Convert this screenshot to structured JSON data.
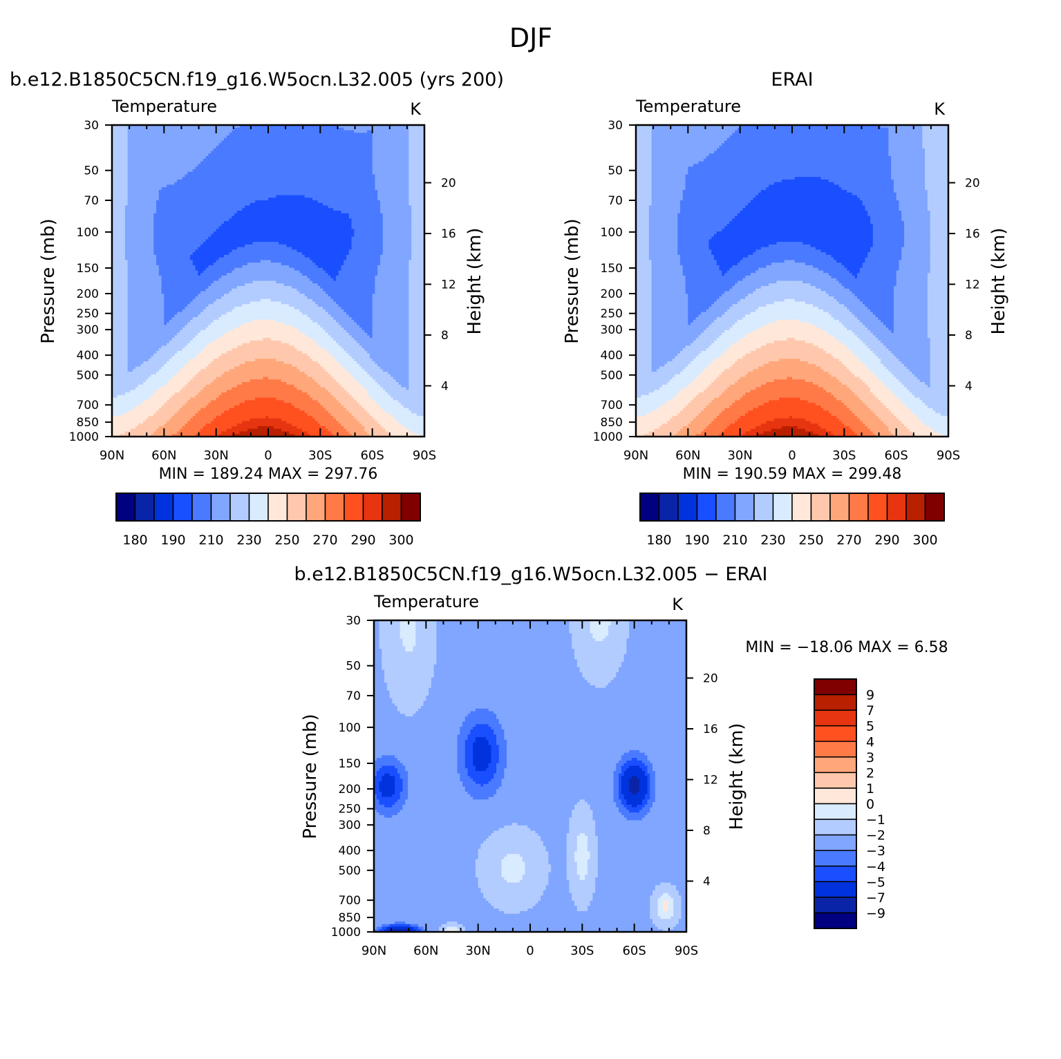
{
  "figure": {
    "title": "DJF"
  },
  "colors": {
    "abs_palette": [
      "#000080",
      "#0a24a8",
      "#0033dd",
      "#1a4fff",
      "#4a7aff",
      "#80a6ff",
      "#b3ccff",
      "#d9ebff",
      "#ffe8d9",
      "#ffc8ad",
      "#ffa77a",
      "#ff7a47",
      "#ff5020",
      "#e63510",
      "#b82000",
      "#800000"
    ],
    "diff_palette": [
      "#000080",
      "#0a24a8",
      "#0033dd",
      "#1a4fff",
      "#4a7aff",
      "#80a6ff",
      "#b3ccff",
      "#d9ebff",
      "#ffe8d9",
      "#ffc8ad",
      "#ffa77a",
      "#ff7a47",
      "#ff5020",
      "#e63510",
      "#b82000",
      "#800000"
    ]
  },
  "chart_data": [
    {
      "type": "heatmap",
      "title": "b.e12.B1850C5CN.f19_g16.W5ocn.L32.005 (yrs 200)",
      "left_label": "Temperature",
      "right_label": "K",
      "ylabel": "Pressure (mb)",
      "ylabel_right": "Height (km)",
      "xticks": [
        "90N",
        "60N",
        "30N",
        "0",
        "30S",
        "60S",
        "90S"
      ],
      "yticks": [
        "30",
        "50",
        "70",
        "100",
        "150",
        "200",
        "250",
        "300",
        "400",
        "500",
        "700",
        "850",
        "1000"
      ],
      "yticks_right": [
        "4",
        "8",
        "12",
        "16",
        "20"
      ],
      "x_range": [
        -90,
        90
      ],
      "y_range_mb": [
        30,
        1000
      ],
      "stats": "MIN =  189.24   MAX =  297.76",
      "stat_min": 189.24,
      "stat_max": 297.76,
      "colorbar_labels": [
        "180",
        "190",
        "210",
        "230",
        "250",
        "270",
        "290",
        "300"
      ],
      "field": {
        "kind": "abs",
        "tropo_shift": 0,
        "tropo_mag": 1.0,
        "polar_strat": 0,
        "seed": 1
      }
    },
    {
      "type": "heatmap",
      "title": "ERAI",
      "left_label": "Temperature",
      "right_label": "K",
      "ylabel": "Pressure (mb)",
      "ylabel_right": "Height (km)",
      "xticks": [
        "90N",
        "60N",
        "30N",
        "0",
        "30S",
        "60S",
        "90S"
      ],
      "yticks": [
        "30",
        "50",
        "70",
        "100",
        "150",
        "200",
        "250",
        "300",
        "400",
        "500",
        "700",
        "850",
        "1000"
      ],
      "yticks_right": [
        "4",
        "8",
        "12",
        "16",
        "20"
      ],
      "x_range": [
        -90,
        90
      ],
      "y_range_mb": [
        30,
        1000
      ],
      "stats": "MIN =  190.59   MAX =  299.48",
      "stat_min": 190.59,
      "stat_max": 299.48,
      "colorbar_labels": [
        "180",
        "190",
        "210",
        "230",
        "250",
        "270",
        "290",
        "300"
      ],
      "field": {
        "kind": "abs",
        "tropo_shift": 1.5,
        "tropo_mag": 1.0,
        "polar_strat": 3,
        "seed": 2
      }
    },
    {
      "type": "heatmap",
      "title": "b.e12.B1850C5CN.f19_g16.W5ocn.L32.005 − ERAI",
      "left_label": "Temperature",
      "right_label": "K",
      "ylabel": "Pressure (mb)",
      "ylabel_right": "Height (km)",
      "xticks": [
        "90N",
        "60N",
        "30N",
        "0",
        "30S",
        "60S",
        "90S"
      ],
      "yticks": [
        "30",
        "50",
        "70",
        "100",
        "150",
        "200",
        "250",
        "300",
        "400",
        "500",
        "700",
        "850",
        "1000"
      ],
      "yticks_right": [
        "4",
        "8",
        "12",
        "16",
        "20"
      ],
      "x_range": [
        -90,
        90
      ],
      "y_range_mb": [
        30,
        1000
      ],
      "stats": "MIN = −18.06   MAX =    6.58",
      "stat_min": -18.06,
      "stat_max": 6.58,
      "colorbar_labels": [
        "9",
        "7",
        "5",
        "4",
        "3",
        "2",
        "1",
        "0",
        "−1",
        "−2",
        "−3",
        "−4",
        "−5",
        "−7",
        "−9"
      ],
      "field": {
        "kind": "diff",
        "seed": 3
      }
    }
  ]
}
